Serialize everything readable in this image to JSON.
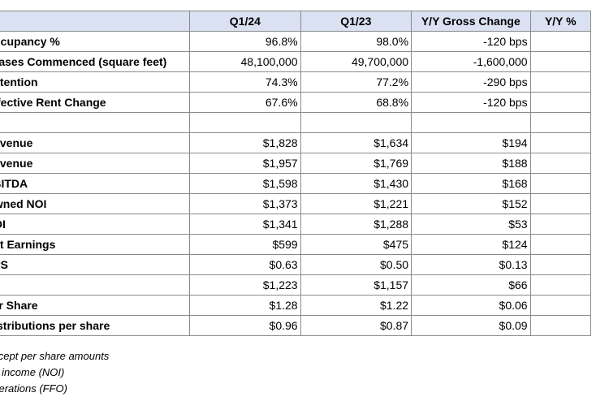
{
  "table": {
    "headers": [
      "",
      "Q1/24",
      "Q1/23",
      "Y/Y Gross Change",
      "Y/Y %"
    ],
    "rows": [
      [
        "Occupancy %",
        "96.8%",
        "98.0%",
        "-120 bps",
        ""
      ],
      [
        "Leases Commenced (square feet)",
        "48,100,000",
        "49,700,000",
        "-1,600,000",
        ""
      ],
      [
        "Retention",
        "74.3%",
        "77.2%",
        "-290 bps",
        ""
      ],
      [
        "Effective Rent Change",
        "67.6%",
        "68.8%",
        "-120 bps",
        ""
      ],
      [
        "",
        "",
        "",
        "",
        ""
      ],
      [
        "Revenue",
        "$1,828",
        "$1,634",
        "$194",
        ""
      ],
      [
        "Revenue",
        "$1,957",
        "$1,769",
        "$188",
        ""
      ],
      [
        "EBITDA",
        "$1,598",
        "$1,430",
        "$168",
        ""
      ],
      [
        "Owned NOI",
        "$1,373",
        "$1,221",
        "$152",
        ""
      ],
      [
        "NOI",
        "$1,341",
        "$1,288",
        "$53",
        ""
      ],
      [
        "Net Earnings",
        "$599",
        "$475",
        "$124",
        ""
      ],
      [
        "EPS",
        "$0.63",
        "$0.50",
        "$0.13",
        ""
      ],
      [
        "",
        "$1,223",
        "$1,157",
        "$66",
        ""
      ],
      [
        "per Share",
        "$1.28",
        "$1.22",
        "$0.06",
        ""
      ],
      [
        "Distributions per share",
        "$0.96",
        "$0.87",
        "$0.09",
        ""
      ]
    ]
  },
  "footnotes": [
    "except per share amounts",
    "ng income (NOI)",
    "operations (FFO)"
  ]
}
